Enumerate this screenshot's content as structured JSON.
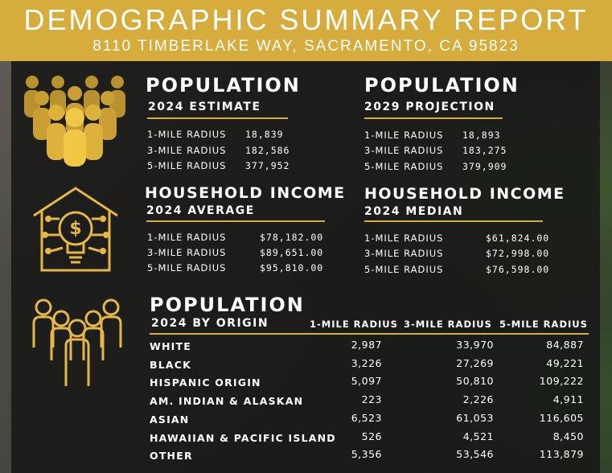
{
  "header": {
    "title": "DEMOGRAPHIC SUMMARY REPORT",
    "address": "8110 TIMBERLAKE WAY, SACRAMENTO, CA 95823"
  },
  "population_2024": {
    "title": "POPULATION",
    "subtitle": "2024 ESTIMATE",
    "rows": [
      {
        "label": "1-MILE RADIUS",
        "value": "18,839"
      },
      {
        "label": "3-MILE RADIUS",
        "value": "182,586"
      },
      {
        "label": "5-MILE RADIUS",
        "value": "377,952"
      }
    ]
  },
  "population_2029": {
    "title": "POPULATION",
    "subtitle": "2029 PROJECTION",
    "rows": [
      {
        "label": "1-MILE RADIUS",
        "value": "18,893"
      },
      {
        "label": "3-MILE RADIUS",
        "value": "183,275"
      },
      {
        "label": "5-MILE RADIUS",
        "value": "379,909"
      }
    ]
  },
  "income_average": {
    "title": "HOUSEHOLD INCOME",
    "subtitle": "2024 AVERAGE",
    "rows": [
      {
        "label": "1-MILE RADIUS",
        "value": "$78,182.00"
      },
      {
        "label": "3-MILE RADIUS",
        "value": "$89,651.00"
      },
      {
        "label": "5-MILE RADIUS",
        "value": "$95,810.00"
      }
    ]
  },
  "income_median": {
    "title": "HOUSEHOLD INCOME",
    "subtitle": "2024 MEDIAN",
    "rows": [
      {
        "label": "1-MILE RADIUS",
        "value": "$61,824.00"
      },
      {
        "label": "3-MILE RADIUS",
        "value": "$72,998.00"
      },
      {
        "label": "5-MILE RADIUS",
        "value": "$76,598.00"
      }
    ]
  },
  "origin": {
    "title": "POPULATION",
    "subtitle": "2024 BY ORIGIN",
    "columns": [
      "1-MILE RADIUS",
      "3-MILE RADIUS",
      "5-MILE RADIUS"
    ],
    "rows": [
      {
        "label": "WHITE",
        "values": [
          "2,987",
          "33,970",
          "84,887"
        ]
      },
      {
        "label": "BLACK",
        "values": [
          "3,226",
          "27,269",
          "49,221"
        ]
      },
      {
        "label": "HISPANIC ORIGIN",
        "values": [
          "5,097",
          "50,810",
          "109,222"
        ]
      },
      {
        "label": "AM. INDIAN & ALASKAN",
        "values": [
          "223",
          "2,226",
          "4,911"
        ]
      },
      {
        "label": "ASIAN",
        "values": [
          "6,523",
          "61,053",
          "116,605"
        ]
      },
      {
        "label": "HAWAIIAN & PACIFIC ISLAND",
        "values": [
          "526",
          "4,521",
          "8,450"
        ]
      },
      {
        "label": "OTHER",
        "values": [
          "5,356",
          "53,546",
          "113,879"
        ]
      }
    ]
  },
  "colors": {
    "accent": "#d6ac3c",
    "panel": "#161616"
  },
  "icons": [
    "crowd-icon",
    "house-lightbulb-icon",
    "people-group-icon"
  ]
}
